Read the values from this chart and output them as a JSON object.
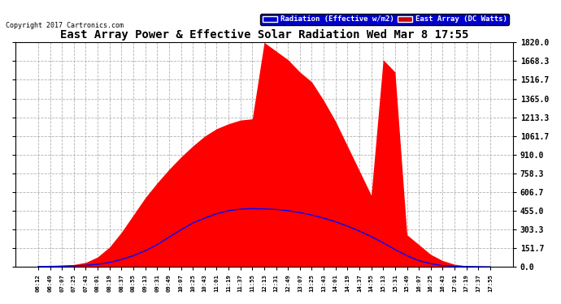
{
  "title": "East Array Power & Effective Solar Radiation Wed Mar 8 17:55",
  "copyright": "Copyright 2017 Cartronics.com",
  "legend_labels": [
    "Radiation (Effective w/m2)",
    "East Array (DC Watts)"
  ],
  "legend_colors": [
    "#0000ff",
    "#ff0000"
  ],
  "bg_color": "#ffffff",
  "plot_bg_color": "#ffffff",
  "grid_color": "#aaaaaa",
  "y_max": 1820.0,
  "y_min": 0.0,
  "y_ticks": [
    0.0,
    151.7,
    303.3,
    455.0,
    606.7,
    758.3,
    910.0,
    1061.7,
    1213.3,
    1365.0,
    1516.7,
    1668.3,
    1820.0
  ],
  "x_labels": [
    "06:12",
    "06:49",
    "07:07",
    "07:25",
    "07:43",
    "08:01",
    "08:19",
    "08:37",
    "08:55",
    "09:13",
    "09:31",
    "09:49",
    "10:07",
    "10:25",
    "10:43",
    "11:01",
    "11:19",
    "11:37",
    "11:55",
    "12:13",
    "12:31",
    "12:49",
    "13:07",
    "13:25",
    "13:43",
    "14:01",
    "14:19",
    "14:37",
    "14:55",
    "15:13",
    "15:31",
    "15:49",
    "16:07",
    "16:25",
    "16:43",
    "17:01",
    "17:19",
    "17:37",
    "17:55"
  ],
  "radiation_data": [
    5,
    8,
    12,
    18,
    35,
    80,
    160,
    280,
    420,
    560,
    680,
    790,
    890,
    980,
    1060,
    1120,
    1160,
    1190,
    1200,
    1820,
    1750,
    1680,
    1580,
    1500,
    1350,
    1180,
    980,
    780,
    580,
    1680,
    1580,
    260,
    180,
    100,
    50,
    20,
    8,
    3,
    2
  ],
  "power_data": [
    2,
    3,
    5,
    8,
    12,
    20,
    35,
    60,
    90,
    130,
    180,
    240,
    300,
    355,
    395,
    430,
    455,
    468,
    472,
    470,
    465,
    455,
    440,
    420,
    395,
    365,
    330,
    290,
    245,
    195,
    140,
    90,
    50,
    25,
    10,
    4,
    2,
    1,
    0
  ],
  "title_color": "#000000",
  "tick_color": "#000000",
  "spine_color": "#000000",
  "legend_bg_blue": "#0000cc",
  "legend_bg_red": "#cc0000"
}
